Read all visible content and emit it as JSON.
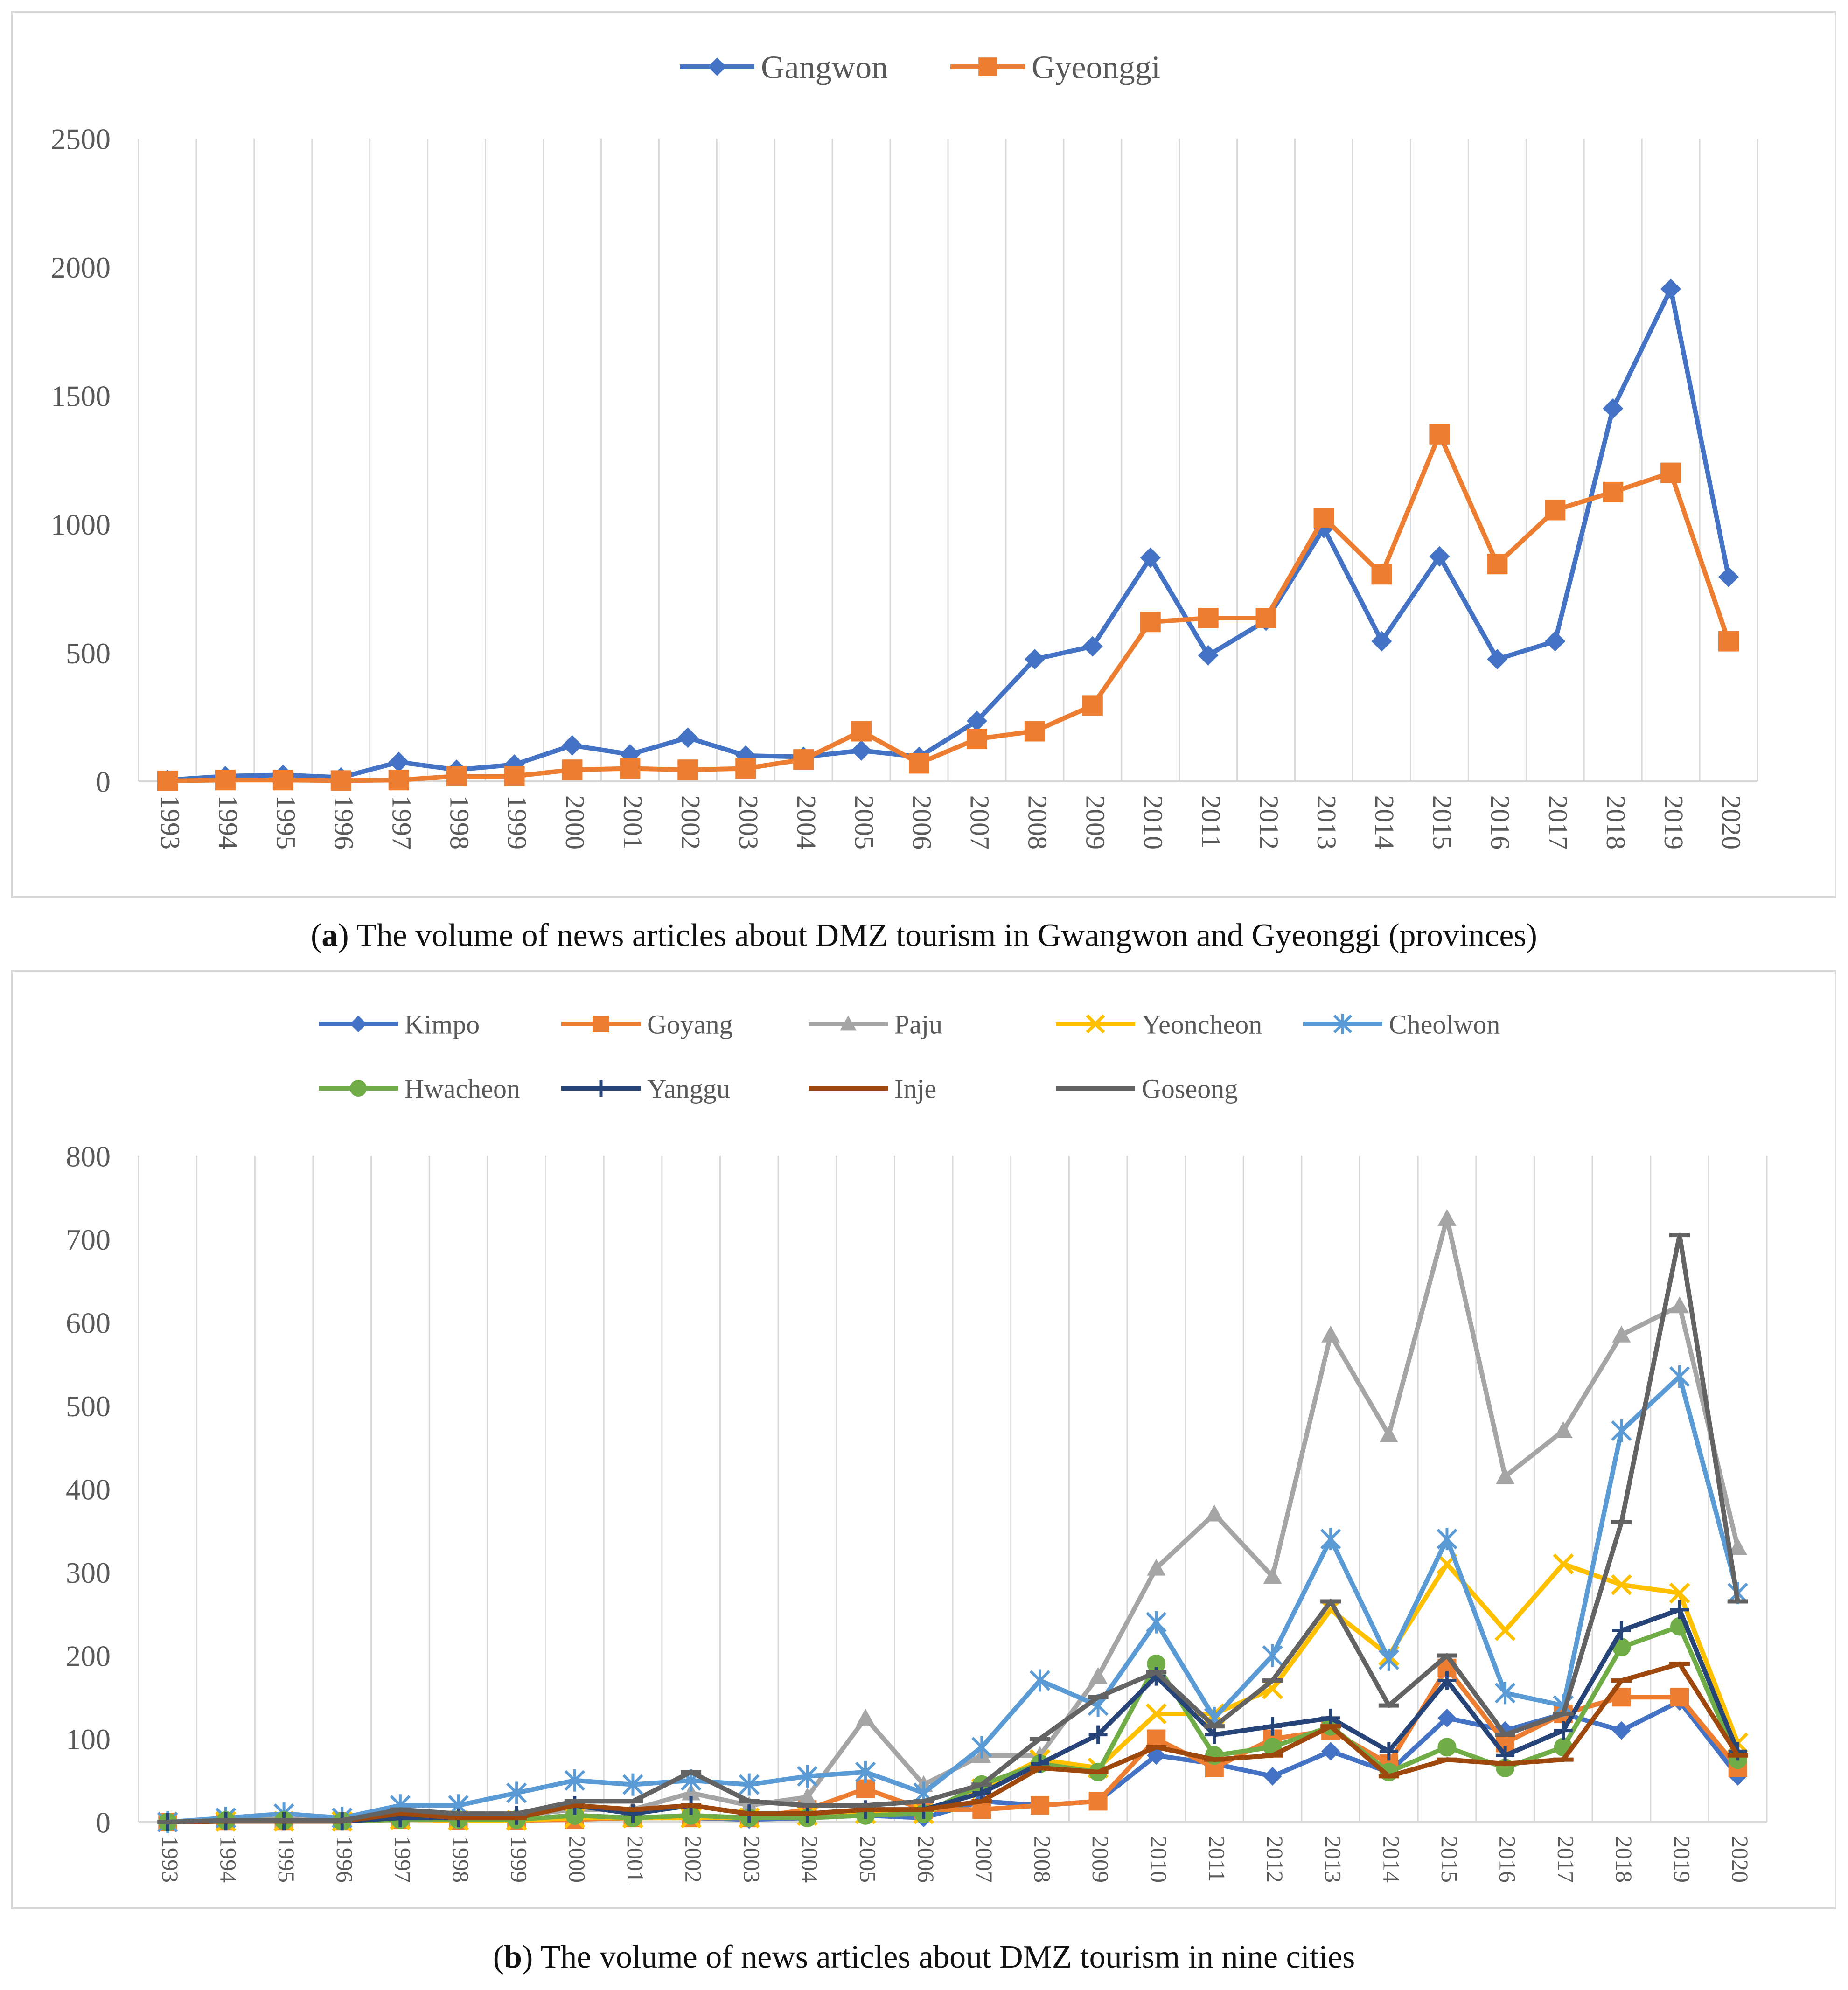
{
  "colors": {
    "Gangwon": "#4472C4",
    "Gyeonggi": "#ED7D31",
    "Kimpo": "#4472C4",
    "Goyang": "#ED7D31",
    "Paju": "#A5A5A5",
    "Yeoncheon": "#FFC000",
    "Cheolwon": "#5B9BD5",
    "Hwacheon": "#70AD47",
    "Yanggu": "#264478",
    "Inje": "#9E480E",
    "Goseong": "#636363",
    "grid": "#d9d9d9",
    "axis_text": "#595959"
  },
  "captions": {
    "a_label": "a",
    "a_text": "The volume of news articles about DMZ tourism in Gwangwon and Gyeonggi (provinces)",
    "b_label": "b",
    "b_text": "The volume of news articles about DMZ tourism in nine cities"
  },
  "chart_data": [
    {
      "type": "line",
      "title": "",
      "xlabel": "",
      "ylabel": "",
      "x": [
        "1993",
        "1994",
        "1995",
        "1996",
        "1997",
        "1998",
        "1999",
        "2000",
        "2001",
        "2002",
        "2003",
        "2004",
        "2005",
        "2006",
        "2007",
        "2008",
        "2009",
        "2010",
        "2011",
        "2012",
        "2013",
        "2014",
        "2015",
        "2016",
        "2017",
        "2018",
        "2019",
        "2020"
      ],
      "ylim": [
        0,
        2500
      ],
      "yticks": [
        0,
        500,
        1000,
        1500,
        2000,
        2500
      ],
      "legend_position": "top-center",
      "series": [
        {
          "name": "Gangwon",
          "marker": "diamond",
          "values": [
            5,
            20,
            25,
            15,
            75,
            45,
            65,
            140,
            105,
            170,
            100,
            95,
            120,
            95,
            235,
            475,
            525,
            870,
            490,
            625,
            985,
            545,
            875,
            475,
            545,
            1450,
            1915,
            795
          ]
        },
        {
          "name": "Gyeonggi",
          "marker": "square",
          "values": [
            2,
            5,
            5,
            3,
            5,
            20,
            20,
            45,
            50,
            45,
            50,
            85,
            195,
            70,
            165,
            195,
            295,
            620,
            635,
            635,
            1025,
            805,
            1350,
            845,
            1055,
            1125,
            1200,
            545
          ]
        }
      ]
    },
    {
      "type": "line",
      "title": "",
      "xlabel": "",
      "ylabel": "",
      "x": [
        "1993",
        "1994",
        "1995",
        "1996",
        "1997",
        "1998",
        "1999",
        "2000",
        "2001",
        "2002",
        "2003",
        "2004",
        "2005",
        "2006",
        "2007",
        "2008",
        "2009",
        "2010",
        "2011",
        "2012",
        "2013",
        "2014",
        "2015",
        "2016",
        "2017",
        "2018",
        "2019",
        "2020"
      ],
      "ylim": [
        0,
        800
      ],
      "yticks": [
        0,
        100,
        200,
        300,
        400,
        500,
        600,
        700,
        800
      ],
      "legend_position": "top-center",
      "series": [
        {
          "name": "Kimpo",
          "marker": "diamond",
          "values": [
            0,
            2,
            2,
            1,
            5,
            3,
            3,
            8,
            5,
            5,
            3,
            5,
            8,
            5,
            25,
            20,
            25,
            80,
            70,
            55,
            85,
            60,
            125,
            110,
            130,
            110,
            145,
            55
          ]
        },
        {
          "name": "Goyang",
          "marker": "square",
          "values": [
            0,
            1,
            1,
            1,
            3,
            2,
            2,
            3,
            5,
            5,
            5,
            15,
            40,
            15,
            15,
            20,
            25,
            100,
            65,
            100,
            110,
            70,
            185,
            95,
            130,
            150,
            150,
            65
          ]
        },
        {
          "name": "Paju",
          "marker": "triangle",
          "values": [
            0,
            3,
            3,
            2,
            5,
            5,
            8,
            15,
            15,
            35,
            20,
            30,
            125,
            45,
            80,
            80,
            175,
            305,
            370,
            295,
            585,
            465,
            725,
            415,
            470,
            585,
            620,
            330
          ]
        },
        {
          "name": "Yeoncheon",
          "marker": "x",
          "values": [
            0,
            1,
            1,
            1,
            3,
            2,
            2,
            5,
            5,
            5,
            5,
            8,
            10,
            10,
            40,
            75,
            65,
            130,
            130,
            160,
            255,
            200,
            310,
            230,
            310,
            285,
            275,
            95
          ]
        },
        {
          "name": "Cheolwon",
          "marker": "asterisk",
          "values": [
            0,
            5,
            10,
            5,
            20,
            20,
            35,
            50,
            45,
            50,
            45,
            55,
            60,
            35,
            90,
            170,
            140,
            240,
            125,
            200,
            340,
            195,
            340,
            155,
            140,
            470,
            535,
            275
          ]
        },
        {
          "name": "Hwacheon",
          "marker": "circle",
          "values": [
            0,
            2,
            2,
            1,
            3,
            3,
            3,
            8,
            5,
            8,
            5,
            5,
            8,
            10,
            45,
            70,
            60,
            190,
            80,
            90,
            115,
            60,
            90,
            65,
            90,
            210,
            235,
            75
          ]
        },
        {
          "name": "Yanggu",
          "marker": "plus",
          "values": [
            0,
            1,
            1,
            1,
            5,
            5,
            8,
            20,
            10,
            20,
            10,
            10,
            15,
            15,
            35,
            70,
            105,
            175,
            105,
            115,
            125,
            85,
            170,
            80,
            110,
            230,
            255,
            85
          ]
        },
        {
          "name": "Inje",
          "marker": "dash",
          "values": [
            0,
            1,
            1,
            1,
            10,
            5,
            5,
            20,
            15,
            20,
            10,
            10,
            15,
            15,
            25,
            65,
            60,
            90,
            75,
            80,
            115,
            55,
            75,
            70,
            75,
            170,
            190,
            80
          ]
        },
        {
          "name": "Goseong",
          "marker": "dash",
          "values": [
            0,
            2,
            2,
            2,
            15,
            10,
            10,
            25,
            25,
            60,
            25,
            20,
            20,
            25,
            45,
            100,
            150,
            180,
            115,
            170,
            265,
            140,
            200,
            105,
            130,
            360,
            705,
            265
          ]
        }
      ]
    }
  ]
}
